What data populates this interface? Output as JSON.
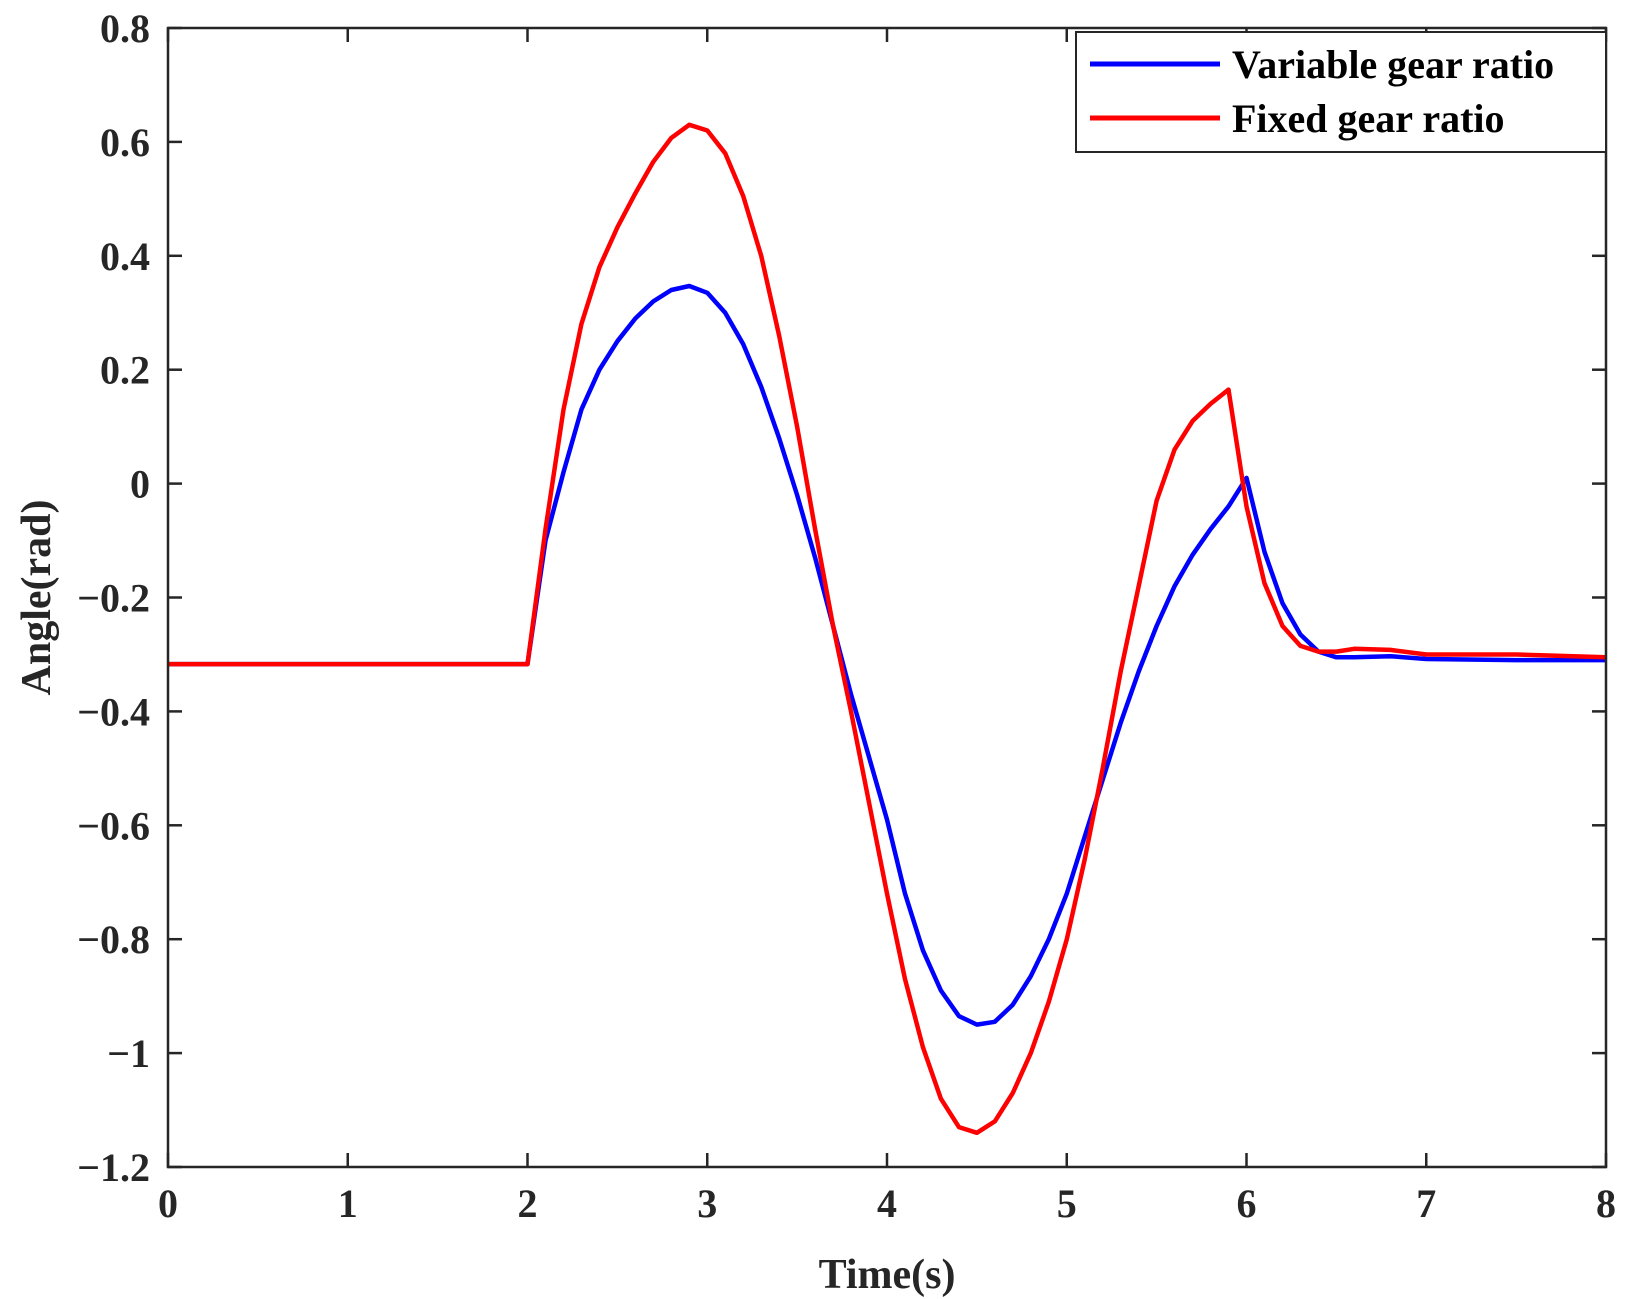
{
  "chart_data": {
    "type": "line",
    "title": "",
    "xlabel": "Time(s)",
    "ylabel": "Angle(rad)",
    "xlim": [
      0,
      8
    ],
    "ylim": [
      -1.2,
      0.8
    ],
    "xticks": [
      0,
      1,
      2,
      3,
      4,
      5,
      6,
      7,
      8
    ],
    "xtick_labels": [
      "0",
      "1",
      "2",
      "3",
      "4",
      "5",
      "6",
      "7",
      "8"
    ],
    "yticks": [
      0.8,
      0.6,
      0.4,
      0.2,
      0,
      -0.2,
      -0.4,
      -0.6,
      -0.8,
      -1,
      -1.2
    ],
    "ytick_labels": [
      "0.8",
      "0.6",
      "0.4",
      "0.2",
      "0",
      "−0.2",
      "−0.4",
      "−0.6",
      "−0.8",
      "−1",
      "−1.2"
    ],
    "grid": false,
    "legend_position": "top-right",
    "series": [
      {
        "name": "Variable gear ratio",
        "color": "#0000ff",
        "x": [
          0,
          2.0,
          2.1,
          2.2,
          2.3,
          2.4,
          2.5,
          2.6,
          2.7,
          2.8,
          2.9,
          3.0,
          3.1,
          3.2,
          3.3,
          3.4,
          3.5,
          3.6,
          3.7,
          3.8,
          3.9,
          4.0,
          4.1,
          4.2,
          4.3,
          4.4,
          4.5,
          4.6,
          4.7,
          4.8,
          4.9,
          5.0,
          5.1,
          5.2,
          5.3,
          5.4,
          5.5,
          5.6,
          5.7,
          5.8,
          5.9,
          6.0,
          6.1,
          6.2,
          6.3,
          6.4,
          6.5,
          6.6,
          6.8,
          7.0,
          7.5,
          8.0
        ],
        "y": [
          -0.317,
          -0.317,
          -0.1,
          0.02,
          0.13,
          0.2,
          0.25,
          0.29,
          0.32,
          0.34,
          0.347,
          0.335,
          0.3,
          0.245,
          0.17,
          0.08,
          -0.02,
          -0.13,
          -0.25,
          -0.37,
          -0.48,
          -0.59,
          -0.72,
          -0.82,
          -0.89,
          -0.935,
          -0.95,
          -0.945,
          -0.915,
          -0.865,
          -0.8,
          -0.72,
          -0.62,
          -0.52,
          -0.42,
          -0.33,
          -0.25,
          -0.18,
          -0.125,
          -0.08,
          -0.04,
          0.01,
          -0.12,
          -0.21,
          -0.265,
          -0.295,
          -0.305,
          -0.305,
          -0.303,
          -0.308,
          -0.31,
          -0.31
        ]
      },
      {
        "name": "Fixed gear ratio",
        "color": "#ff0000",
        "x": [
          0,
          2.0,
          2.1,
          2.2,
          2.3,
          2.4,
          2.5,
          2.6,
          2.7,
          2.8,
          2.9,
          3.0,
          3.1,
          3.2,
          3.3,
          3.4,
          3.5,
          3.6,
          3.7,
          3.8,
          3.9,
          4.0,
          4.1,
          4.2,
          4.3,
          4.4,
          4.5,
          4.6,
          4.7,
          4.8,
          4.9,
          5.0,
          5.1,
          5.2,
          5.3,
          5.4,
          5.5,
          5.6,
          5.7,
          5.8,
          5.9,
          6.0,
          6.1,
          6.2,
          6.3,
          6.4,
          6.5,
          6.6,
          6.8,
          7.0,
          7.5,
          8.0
        ],
        "y": [
          -0.317,
          -0.317,
          -0.08,
          0.13,
          0.28,
          0.38,
          0.45,
          0.51,
          0.565,
          0.607,
          0.63,
          0.62,
          0.58,
          0.505,
          0.4,
          0.26,
          0.1,
          -0.08,
          -0.25,
          -0.4,
          -0.56,
          -0.72,
          -0.87,
          -0.99,
          -1.08,
          -1.13,
          -1.14,
          -1.12,
          -1.07,
          -1.0,
          -0.91,
          -0.8,
          -0.66,
          -0.5,
          -0.33,
          -0.18,
          -0.03,
          0.06,
          0.11,
          0.14,
          0.165,
          -0.04,
          -0.175,
          -0.25,
          -0.285,
          -0.295,
          -0.295,
          -0.29,
          -0.292,
          -0.3,
          -0.3,
          -0.305
        ]
      }
    ]
  }
}
